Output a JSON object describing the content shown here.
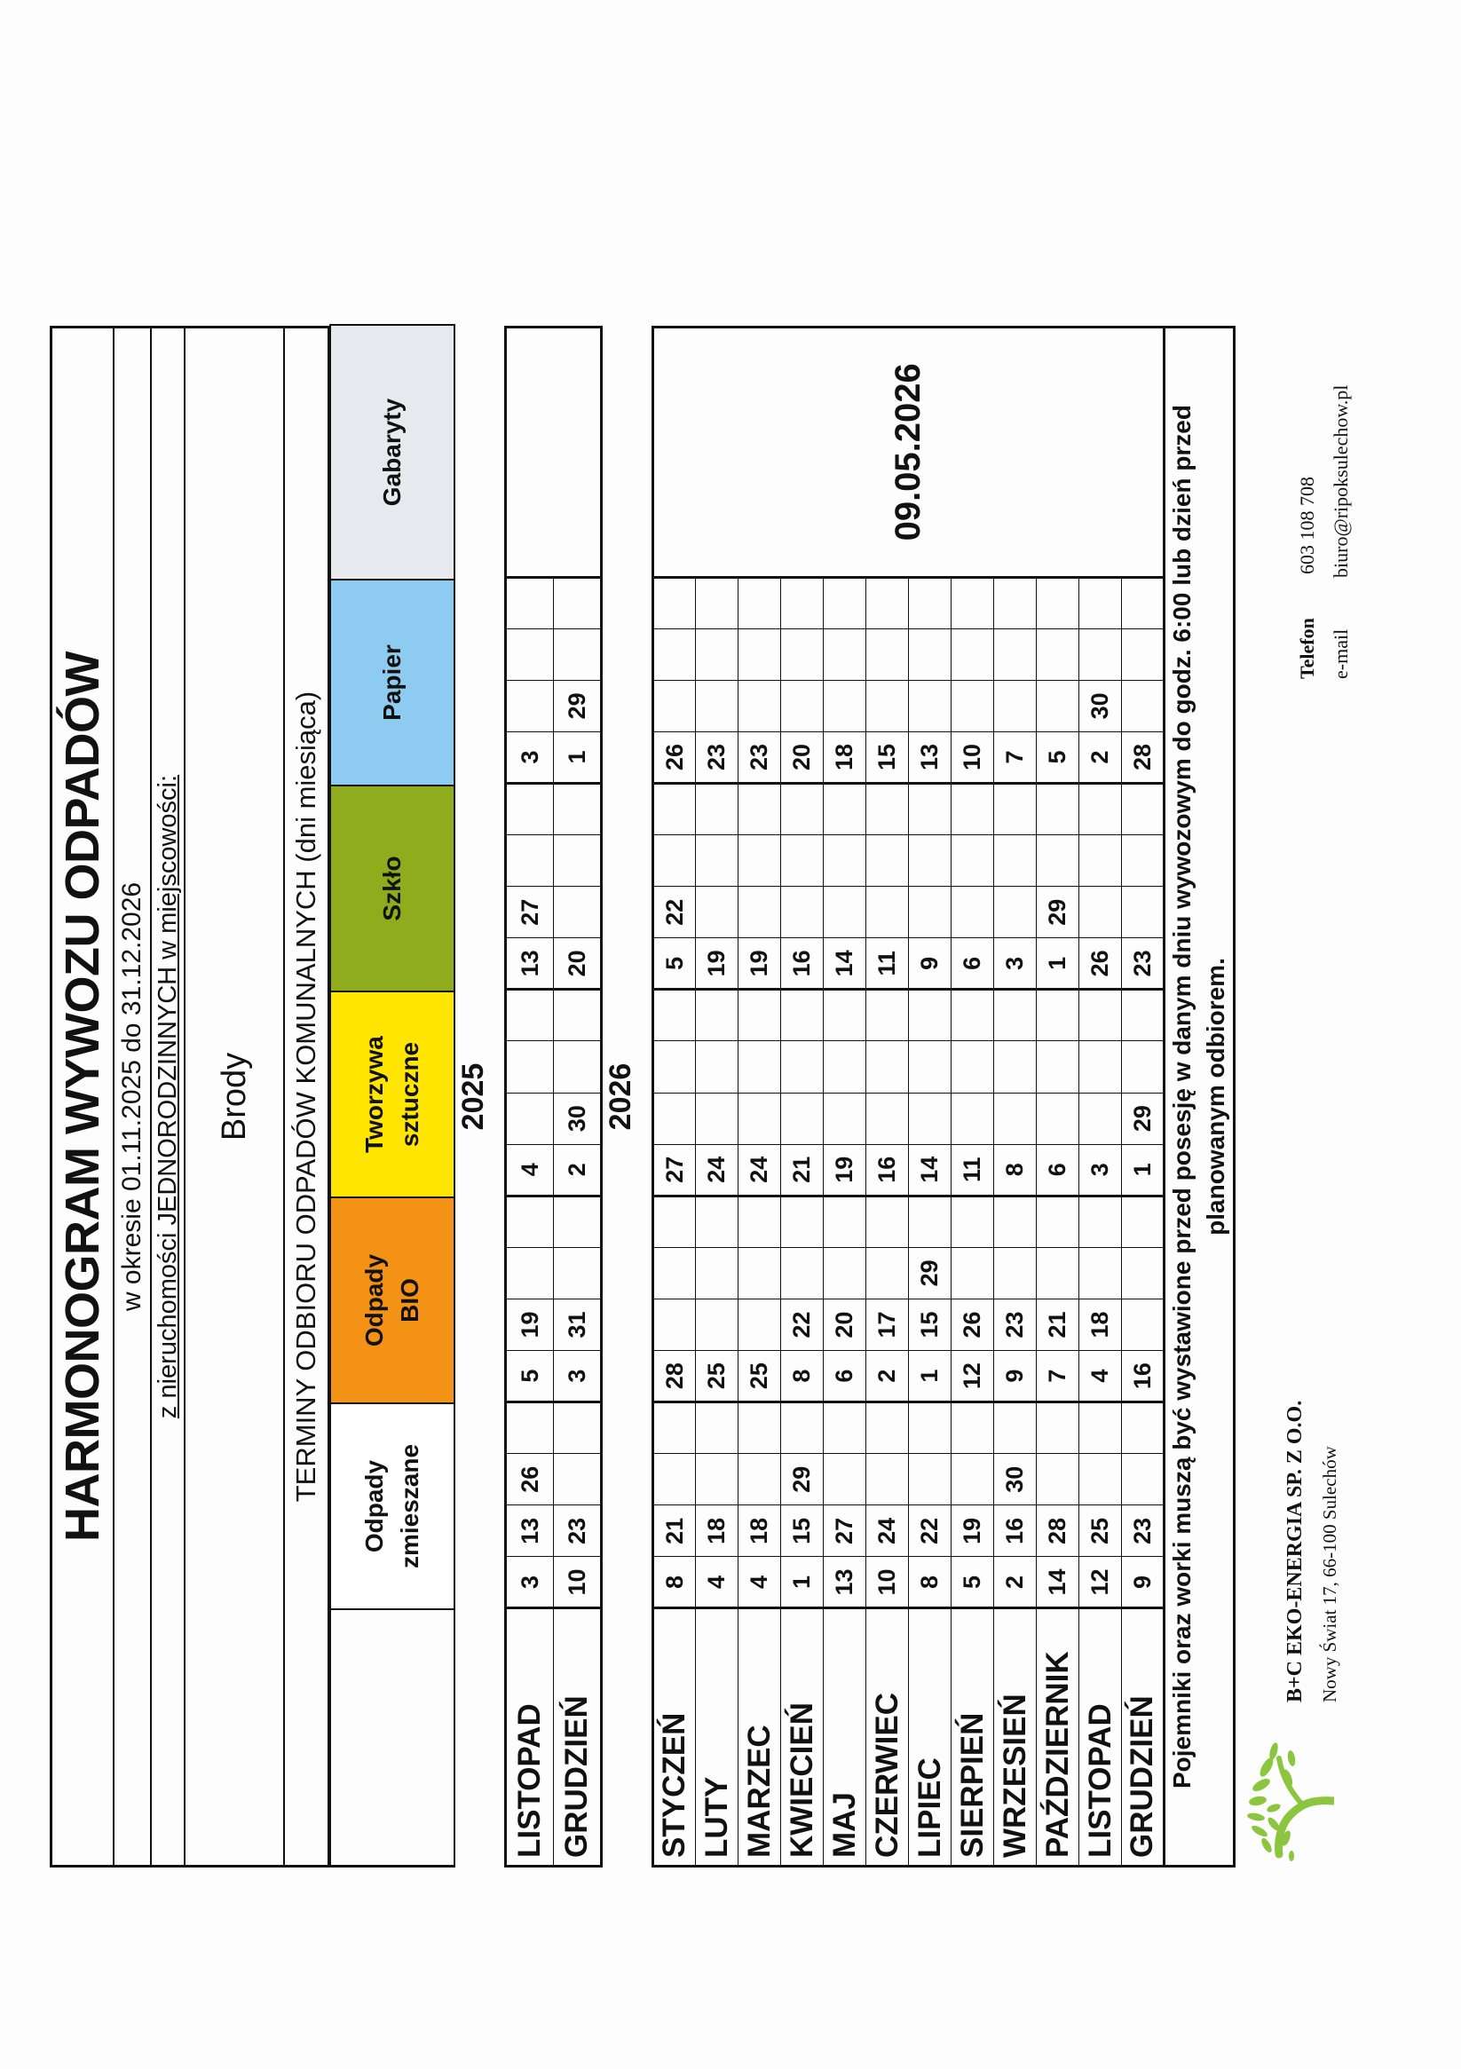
{
  "header": {
    "title": "HARMONOGRAM WYWOZU ODPADÓW",
    "period": "w okresie 01.11.2025 do 31.12.2026",
    "property_type": "z nieruchomości JEDNORODZINNYCH w miejscowości:",
    "locality": "Brody",
    "terms_heading": "TERMINY ODBIORU ODPADÓW KOMUNALNYCH (dni miesiąca)"
  },
  "columns": [
    {
      "key": "zmieszane",
      "line1": "Odpady",
      "line2": "zmieszane",
      "color": "#ffffff"
    },
    {
      "key": "bio",
      "line1": "Odpady",
      "line2": "BIO",
      "color": "#f39214"
    },
    {
      "key": "tworzywa",
      "line1": "Tworzywa",
      "line2": "sztuczne",
      "color": "#ffe500"
    },
    {
      "key": "szklo",
      "line1": "Szkło",
      "line2": "",
      "color": "#8fac1c"
    },
    {
      "key": "papier",
      "line1": "Papier",
      "line2": "",
      "color": "#8ecbf0"
    },
    {
      "key": "gabaryty",
      "line1": "Gabaryty",
      "line2": "",
      "color": "#e8e9ee"
    }
  ],
  "schedule_2025": {
    "year": "2025",
    "gabaryty": "",
    "rows": [
      {
        "month": "LISTOPAD",
        "zmieszane": [
          "3",
          "13",
          "26"
        ],
        "bio": [
          "5",
          "19"
        ],
        "tworzywa": [
          "4"
        ],
        "szklo": [
          "13",
          "27"
        ],
        "papier": [
          "3"
        ]
      },
      {
        "month": "GRUDZIEŃ",
        "zmieszane": [
          "10",
          "23"
        ],
        "bio": [
          "3",
          "31"
        ],
        "tworzywa": [
          "2",
          "30"
        ],
        "szklo": [
          "20"
        ],
        "papier": [
          "1",
          "29"
        ]
      }
    ]
  },
  "schedule_2026": {
    "year": "2026",
    "gabaryty": "09.05.2026",
    "rows": [
      {
        "month": "STYCZEŃ",
        "zmieszane": [
          "8",
          "21"
        ],
        "bio": [
          "28"
        ],
        "tworzywa": [
          "27"
        ],
        "szklo": [
          "5",
          "22"
        ],
        "papier": [
          "26"
        ]
      },
      {
        "month": "LUTY",
        "zmieszane": [
          "4",
          "18"
        ],
        "bio": [
          "25"
        ],
        "tworzywa": [
          "24"
        ],
        "szklo": [
          "19"
        ],
        "papier": [
          "23"
        ]
      },
      {
        "month": "MARZEC",
        "zmieszane": [
          "4",
          "18"
        ],
        "bio": [
          "25"
        ],
        "tworzywa": [
          "24"
        ],
        "szklo": [
          "19"
        ],
        "papier": [
          "23"
        ]
      },
      {
        "month": "KWIECIEŃ",
        "zmieszane": [
          "1",
          "15",
          "29"
        ],
        "bio": [
          "8",
          "22"
        ],
        "tworzywa": [
          "21"
        ],
        "szklo": [
          "16"
        ],
        "papier": [
          "20"
        ]
      },
      {
        "month": "MAJ",
        "zmieszane": [
          "13",
          "27"
        ],
        "bio": [
          "6",
          "20"
        ],
        "tworzywa": [
          "19"
        ],
        "szklo": [
          "14"
        ],
        "papier": [
          "18"
        ]
      },
      {
        "month": "CZERWIEC",
        "zmieszane": [
          "10",
          "24"
        ],
        "bio": [
          "2",
          "17"
        ],
        "tworzywa": [
          "16"
        ],
        "szklo": [
          "11"
        ],
        "papier": [
          "15"
        ]
      },
      {
        "month": "LIPIEC",
        "zmieszane": [
          "8",
          "22"
        ],
        "bio": [
          "1",
          "15",
          "29"
        ],
        "tworzywa": [
          "14"
        ],
        "szklo": [
          "9"
        ],
        "papier": [
          "13"
        ]
      },
      {
        "month": "SIERPIEŃ",
        "zmieszane": [
          "5",
          "19"
        ],
        "bio": [
          "12",
          "26"
        ],
        "tworzywa": [
          "11"
        ],
        "szklo": [
          "6"
        ],
        "papier": [
          "10"
        ]
      },
      {
        "month": "WRZESIEŃ",
        "zmieszane": [
          "2",
          "16",
          "30"
        ],
        "bio": [
          "9",
          "23"
        ],
        "tworzywa": [
          "8"
        ],
        "szklo": [
          "3"
        ],
        "papier": [
          "7"
        ]
      },
      {
        "month": "PAŹDZIERNIK",
        "zmieszane": [
          "14",
          "28"
        ],
        "bio": [
          "7",
          "21"
        ],
        "tworzywa": [
          "6"
        ],
        "szklo": [
          "1",
          "29"
        ],
        "papier": [
          "5"
        ]
      },
      {
        "month": "LISTOPAD",
        "zmieszane": [
          "12",
          "25"
        ],
        "bio": [
          "4",
          "18"
        ],
        "tworzywa": [
          "3"
        ],
        "szklo": [
          "26"
        ],
        "papier": [
          "2",
          "30"
        ]
      },
      {
        "month": "GRUDZIEŃ",
        "zmieszane": [
          "9",
          "23"
        ],
        "bio": [
          "16"
        ],
        "tworzywa": [
          "1",
          "29"
        ],
        "szklo": [
          "23"
        ],
        "papier": [
          "28"
        ]
      }
    ]
  },
  "notice": {
    "line1": "Pojemniki oraz worki muszą być wystawione przed posesję w danym dniu wywozowym do godz. 6:00 lub dzień przed",
    "line2": "planowanym odbiorem."
  },
  "footer": {
    "logo_icon": "green-tree-logo",
    "company": "B+C  EKO-ENERGIA  SP. Z O.O.",
    "address": "Nowy Świat 17, 66-100 Sulechów",
    "phone_label": "Telefon",
    "phone": "603 108 708",
    "email_label": "e-mail",
    "email": "biuro@ripoksulechow.pl"
  }
}
